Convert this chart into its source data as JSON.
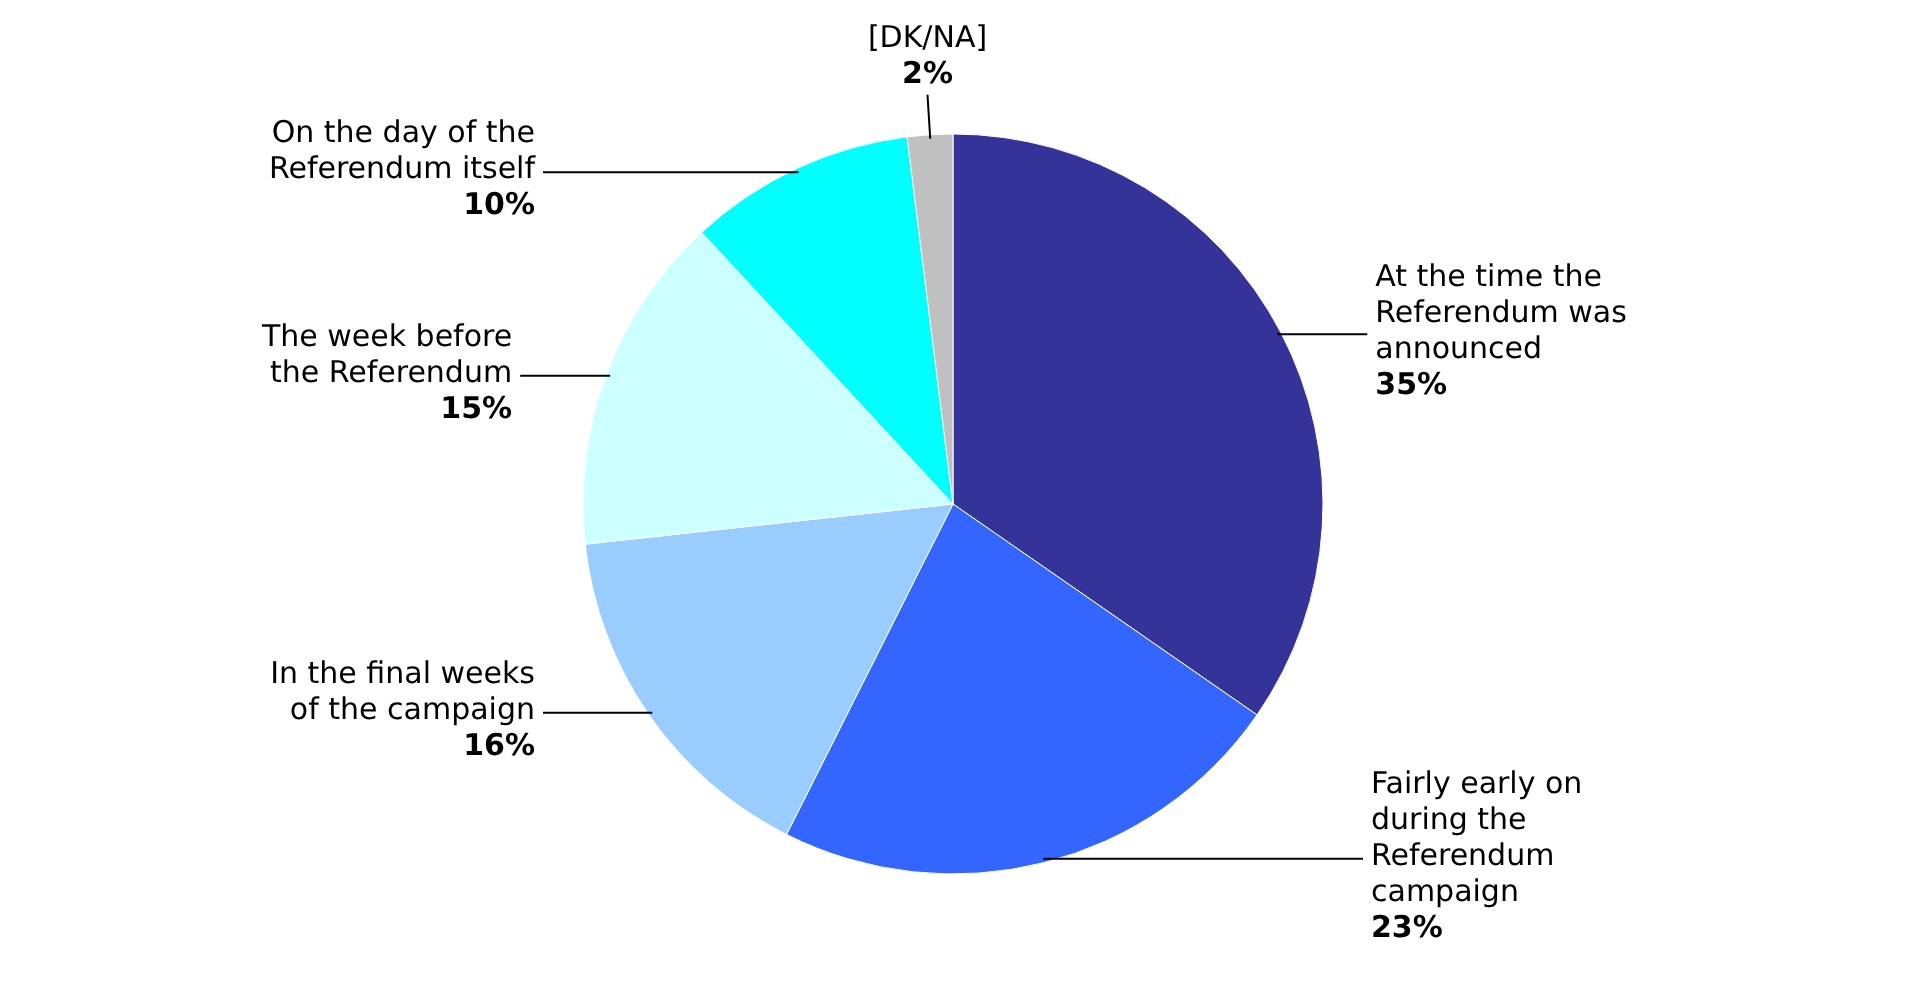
{
  "chart_data": {
    "type": "pie",
    "categories": [
      "At the time the Referendum was announced",
      "Fairly early on during the Referendum campaign",
      "In the final weeks of the campaign",
      "The week before the Referendum",
      "On the day of the Referendum itself",
      "[DK/NA]"
    ],
    "values": [
      35,
      23,
      16,
      15,
      10,
      2
    ],
    "value_labels": [
      "35%",
      "23%",
      "16%",
      "15%",
      "10%",
      "2%"
    ],
    "colors": [
      "#333399",
      "#3366ff",
      "#99ccff",
      "#ccffff",
      "#00ffff",
      "#c0c0c0"
    ]
  }
}
